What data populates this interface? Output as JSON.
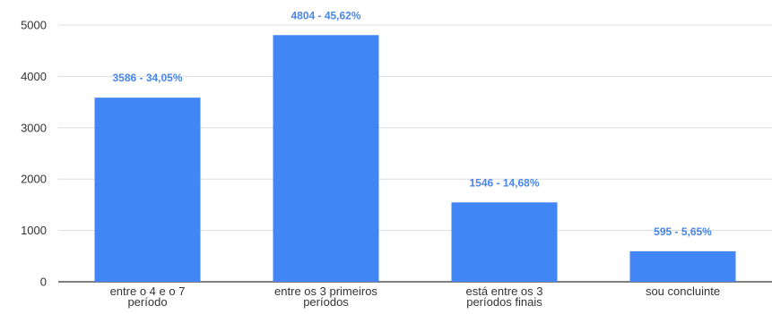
{
  "chart_data": {
    "type": "bar",
    "categories": [
      [
        "entre o 4 e o 7",
        "período"
      ],
      [
        "entre os 3 primeiros",
        "períodos"
      ],
      [
        "está entre os 3",
        "períodos finais"
      ],
      [
        "sou concluinte"
      ]
    ],
    "values": [
      3586,
      4804,
      1546,
      595
    ],
    "data_labels": [
      "3586 - 34,05%",
      "4804 - 45,62%",
      "1546 - 14,68%",
      "595 - 5,65%"
    ],
    "ylim": [
      0,
      5000
    ],
    "yticks": [
      0,
      1000,
      2000,
      3000,
      4000,
      5000
    ],
    "ytick_labels": [
      "0",
      "1000",
      "2000",
      "3000",
      "4000",
      "5000"
    ],
    "grid": true,
    "legend": "none",
    "title": "",
    "xlabel": "",
    "ylabel": "",
    "colors": {
      "bar": "#4285f4",
      "data_label": "#4a86e8",
      "grid": "#dddddd",
      "axis": "#333333",
      "text": "#333333"
    }
  }
}
